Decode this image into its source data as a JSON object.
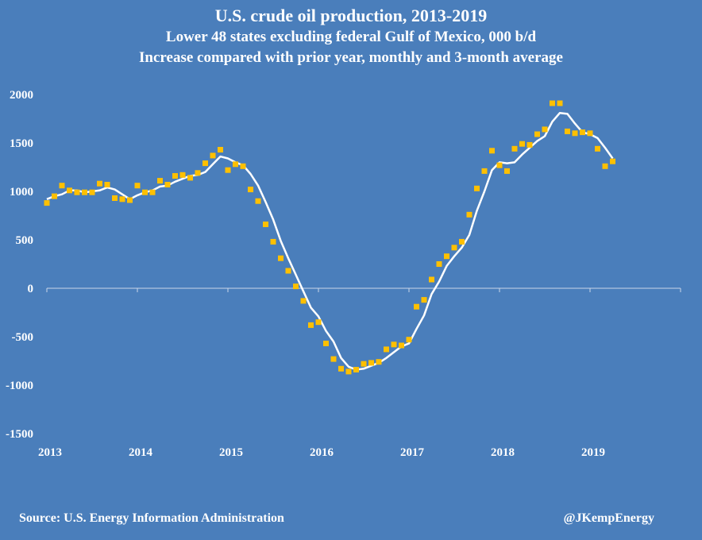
{
  "chart_data": {
    "type": "line+scatter",
    "title": "U.S. crude oil production, 2013-2019",
    "subtitle": "Lower 48 states excluding federal Gulf of Mexico, 000 b/d",
    "subtitle2": "Increase compared with prior year, monthly and 3-month average",
    "ylim": [
      -1500,
      2000
    ],
    "yticks": [
      2000,
      1500,
      1000,
      500,
      0,
      -500,
      -1000,
      -1500
    ],
    "xlim": [
      2013,
      2020
    ],
    "xticks": [
      "2013",
      "2014",
      "2015",
      "2016",
      "2017",
      "2018",
      "2019"
    ],
    "xtick_values": [
      2013,
      2014,
      2015,
      2016,
      2017,
      2018,
      2019
    ],
    "x_start": 2013.0,
    "x_step": 0.0833333,
    "series": [
      {
        "name": "Monthly change",
        "marker": "square",
        "color": "#ffc000",
        "values": [
          880,
          950,
          1060,
          1010,
          990,
          990,
          990,
          1080,
          1070,
          930,
          920,
          910,
          1060,
          990,
          990,
          1110,
          1070,
          1160,
          1170,
          1140,
          1190,
          1290,
          1370,
          1430,
          1220,
          1280,
          1260,
          1020,
          900,
          660,
          480,
          310,
          180,
          20,
          -130,
          -380,
          -350,
          -570,
          -730,
          -830,
          -860,
          -840,
          -780,
          -770,
          -760,
          -630,
          -580,
          -590,
          -530,
          -190,
          -120,
          90,
          250,
          330,
          420,
          480,
          760,
          1030,
          1210,
          1420,
          1270,
          1210,
          1440,
          1490,
          1480,
          1590,
          1640,
          1910,
          1910,
          1620,
          1600,
          1610,
          1600,
          1440,
          1260,
          1310
        ]
      },
      {
        "name": "3-month average",
        "marker": "none",
        "color": "#ffffff",
        "values": [
          920,
          950,
          970,
          1010,
          1010,
          990,
          1000,
          1010,
          1040,
          1020,
          970,
          920,
          960,
          990,
          1010,
          1050,
          1060,
          1100,
          1130,
          1160,
          1170,
          1200,
          1280,
          1360,
          1340,
          1300,
          1270,
          1180,
          1060,
          890,
          710,
          490,
          310,
          140,
          -30,
          -200,
          -290,
          -440,
          -550,
          -720,
          -810,
          -840,
          -830,
          -800,
          -770,
          -720,
          -660,
          -600,
          -570,
          -420,
          -280,
          -60,
          70,
          230,
          330,
          420,
          550,
          800,
          1000,
          1220,
          1300,
          1290,
          1300,
          1380,
          1450,
          1520,
          1570,
          1720,
          1810,
          1800,
          1700,
          1610,
          1590,
          1550,
          1450,
          1340
        ]
      }
    ]
  },
  "footer": {
    "source": "Source:  U.S. Energy Information Administration",
    "handle": "@JKempEnergy"
  }
}
